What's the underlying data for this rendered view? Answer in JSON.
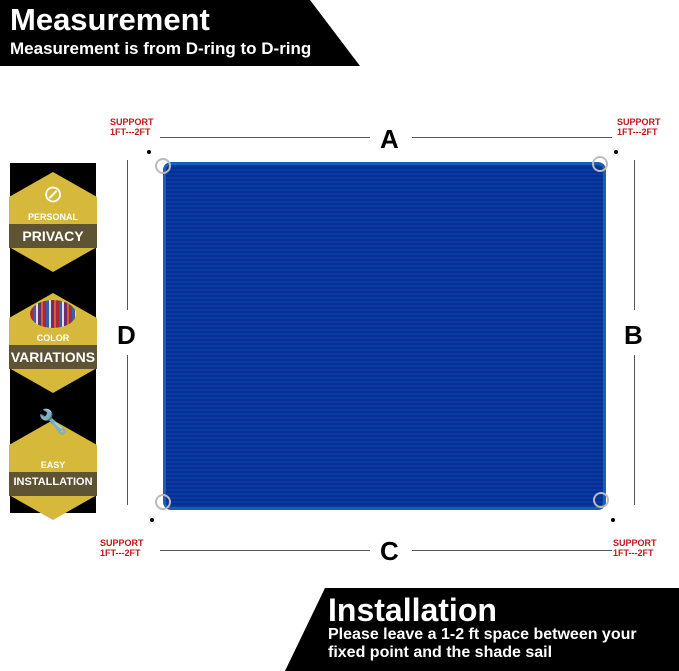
{
  "header": {
    "title": "Measurement",
    "subtitle": "Measurement is from D-ring to D-ring"
  },
  "footer": {
    "title": "Installation",
    "line1": "Please leave a 1-2 ft space between your",
    "line2": "fixed point and the shade sail"
  },
  "dimensions": {
    "a": "A",
    "b": "B",
    "c": "C",
    "d": "D"
  },
  "support": {
    "line1": "SUPPORT",
    "line2": "1FT---2FT"
  },
  "features": [
    {
      "small": "PERSONAL",
      "big": "PRIVACY",
      "icon": "eye-slash-icon"
    },
    {
      "small": "COLOR",
      "big": "VARIATIONS",
      "icon": "color-stripes-icon"
    },
    {
      "small": "EASY",
      "big": "INSTALLATION",
      "icon": "wrench-hand-icon"
    }
  ],
  "colors": {
    "sail": "#2a74c8",
    "badge": "#d6b93a",
    "support_text": "#c0161b"
  }
}
